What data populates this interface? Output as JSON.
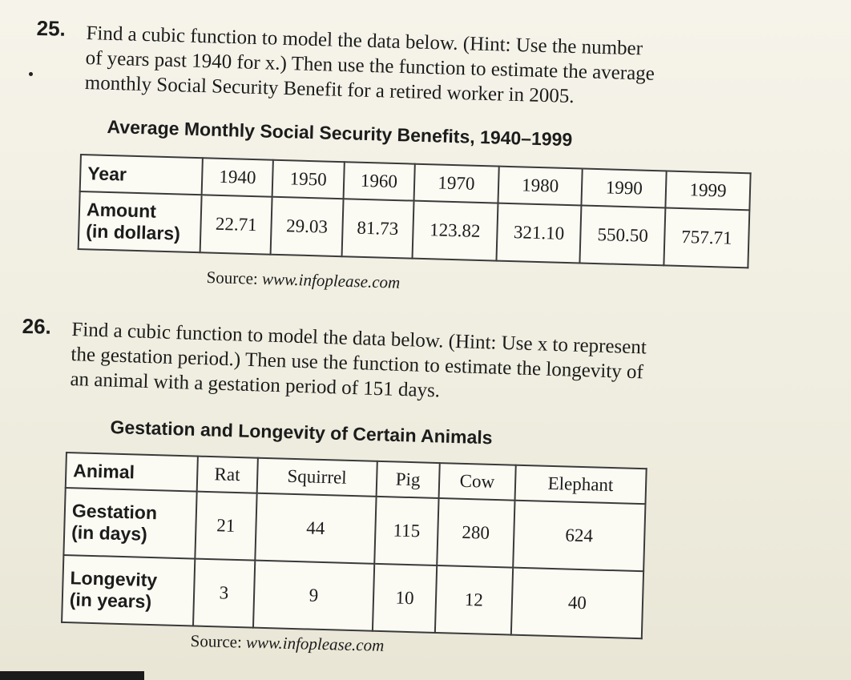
{
  "problem25": {
    "number": "25.",
    "lines": [
      "Find a cubic function to model the data below. (Hint: Use the number",
      "of years past 1940 for x.) Then use the function to estimate the average",
      "monthly Social Security Benefit for a retired worker in 2005."
    ],
    "table_title": "Average Monthly Social Security Benefits, 1940–1999",
    "row1_label": "Year",
    "row2_label_1": "Amount",
    "row2_label_2": "(in dollars)",
    "years": [
      "1940",
      "1950",
      "1960",
      "1970",
      "1980",
      "1990",
      "1999"
    ],
    "amounts": [
      "22.71",
      "29.03",
      "81.73",
      "123.82",
      "321.10",
      "550.50",
      "757.71"
    ],
    "source_prefix": "Source: ",
    "source_url": "www.infoplease.com"
  },
  "problem26": {
    "number": "26.",
    "lines": [
      "Find a cubic function to model the data below. (Hint: Use x to represent",
      "the gestation period.) Then use the function to estimate the longevity of",
      "an animal with a gestation period of 151 days."
    ],
    "table_title": "Gestation and Longevity of Certain Animals",
    "row1_label": "Animal",
    "row2_label_1": "Gestation",
    "row2_label_2": "(in days)",
    "row3_label_1": "Longevity",
    "row3_label_2": "(in years)",
    "animals": [
      "Rat",
      "Squirrel",
      "Pig",
      "Cow",
      "Elephant"
    ],
    "gestation": [
      "21",
      "44",
      "115",
      "280",
      "624"
    ],
    "longevity": [
      "3",
      "9",
      "10",
      "12",
      "40"
    ],
    "source_prefix": "Source: ",
    "source_url": "www.infoplease.com"
  }
}
